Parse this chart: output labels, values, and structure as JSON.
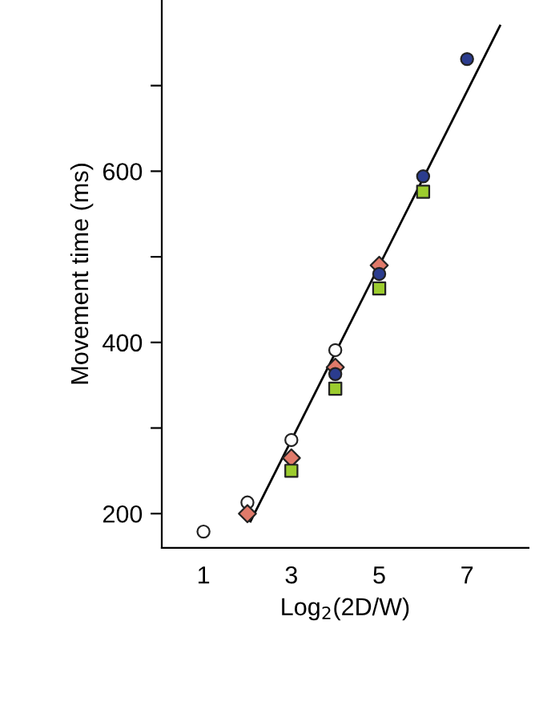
{
  "chart_data": {
    "type": "scatter",
    "xlabel": "Log$_{2}$(2D/W)",
    "ylabel": "Movement time (ms)",
    "xlim": [
      0.05,
      8.4
    ],
    "ylim": [
      160,
      800
    ],
    "xticks": [
      1,
      3,
      5,
      7
    ],
    "yticks": [
      200,
      {
        "value": 300,
        "label": null
      },
      400,
      {
        "value": 500,
        "label": null
      },
      600,
      {
        "value": 700,
        "label": null
      }
    ],
    "grid": false,
    "legend": false,
    "series": [
      {
        "marker": "circle",
        "color": "#ffffff",
        "x": [
          1,
          2,
          3,
          4
        ],
        "values": [
          179,
          213,
          286,
          391
        ]
      },
      {
        "marker": "diamond",
        "color": "#e07a6a",
        "x": [
          2,
          3,
          4,
          5
        ],
        "values": [
          200,
          265,
          371,
          490
        ]
      },
      {
        "marker": "circle",
        "color": "#2b3c8e",
        "x": [
          4,
          5,
          6,
          7
        ],
        "values": [
          363,
          480,
          594,
          731
        ]
      },
      {
        "marker": "square",
        "color": "#9ccc2e",
        "x": [
          3,
          4,
          5,
          6
        ],
        "values": [
          250,
          346,
          463,
          576
        ]
      },
      {
        "type": "line",
        "marker": "none",
        "line_style": "solid",
        "color": "#000000",
        "x": [
          2.07,
          7.75
        ],
        "values": [
          191,
          770
        ]
      }
    ]
  }
}
